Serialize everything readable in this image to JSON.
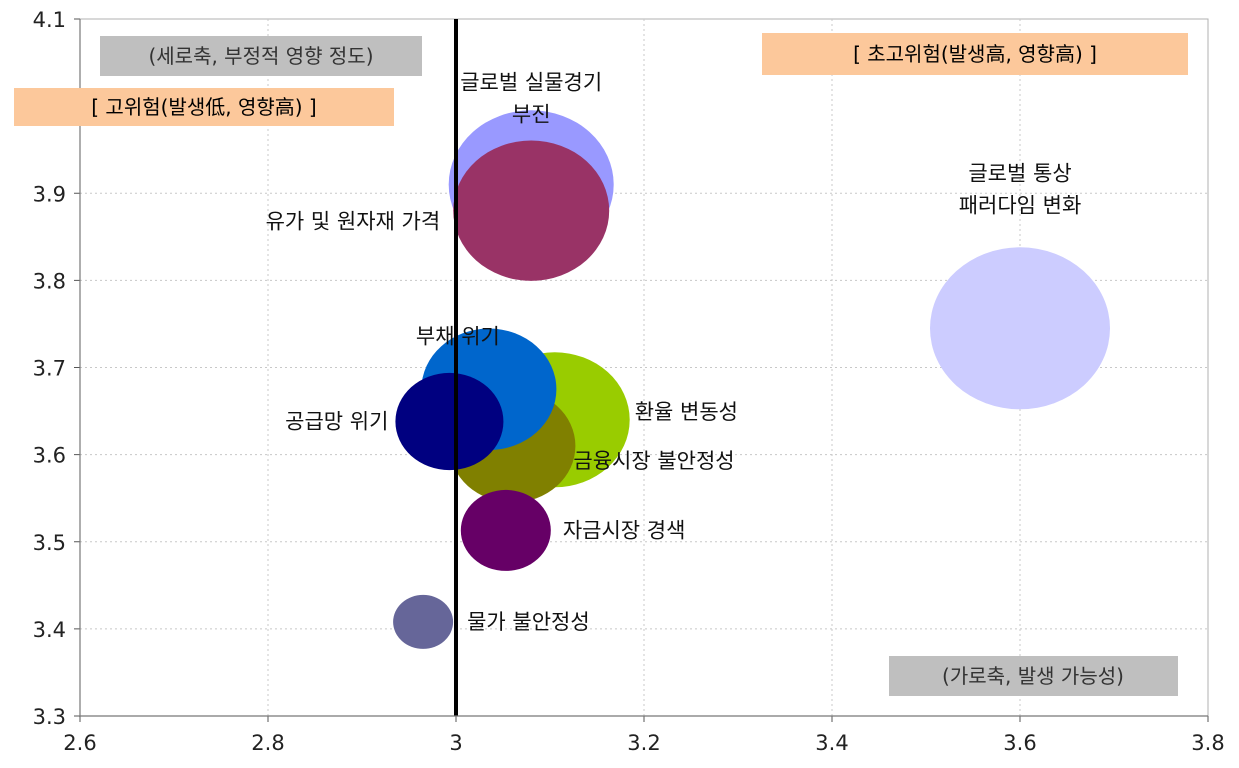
{
  "chart_data": {
    "type": "scatter",
    "xlim": [
      2.6,
      3.8
    ],
    "ylim": [
      3.3,
      4.1
    ],
    "x_ticks": [
      "2.6",
      "2.8",
      "3",
      "3.2",
      "3.4",
      "3.6",
      "3.8"
    ],
    "y_ticks": [
      "3.3",
      "3.4",
      "3.5",
      "3.6",
      "3.7",
      "3.8",
      "3.9",
      "4.1"
    ],
    "grid": true,
    "reference_line_x": 3.0,
    "annotations": {
      "y_axis_note": "(세로축, 부정적 영향 정도)",
      "x_axis_note": "(가로축, 발생 가능성)",
      "high_risk": "[ 고위험(발생低, 영향高) ]",
      "super_high_risk": "[ 초고위험(발생高, 영향高) ]"
    },
    "bubbles": [
      {
        "label": "글로벌 실물경기 부진",
        "label_lines": [
          "글로벌 실물경기",
          "부진"
        ],
        "x": 3.08,
        "y": 3.91,
        "size": 0.55,
        "color": "#9999ff"
      },
      {
        "label": "유가 및 원자재 가격",
        "label_lines": [
          "유가 및 원자재 가격"
        ],
        "x": 3.08,
        "y": 3.88,
        "size": 0.52,
        "color": "#993366"
      },
      {
        "label": "글로벌 통상 패러다임 변화",
        "label_lines": [
          "글로벌 통상",
          "패러다임 변화"
        ],
        "x": 3.6,
        "y": 3.745,
        "size": 0.6,
        "color": "#ccccff"
      },
      {
        "label": "환율 변동성",
        "label_lines": [
          "환율 변동성"
        ],
        "x": 3.105,
        "y": 3.64,
        "size": 0.5,
        "color": "#99cc00"
      },
      {
        "label": "금융시장 불안정성",
        "label_lines": [
          "금융시장 불안정성"
        ],
        "x": 3.06,
        "y": 3.61,
        "size": 0.42,
        "color": "#808000"
      },
      {
        "label": "부채 위기",
        "label_lines": [
          "부채 위기"
        ],
        "x": 3.035,
        "y": 3.675,
        "size": 0.45,
        "color": "#0066cc"
      },
      {
        "label": "공급망 위기",
        "label_lines": [
          "공급망 위기"
        ],
        "x": 2.993,
        "y": 3.638,
        "size": 0.36,
        "color": "#000080"
      },
      {
        "label": "자금시장 경색",
        "label_lines": [
          "자금시장 경색"
        ],
        "x": 3.053,
        "y": 3.513,
        "size": 0.3,
        "color": "#660066"
      },
      {
        "label": "물가 불안정성",
        "label_lines": [
          "물가 불안정성"
        ],
        "x": 2.965,
        "y": 3.408,
        "size": 0.2,
        "color": "#666699"
      }
    ]
  }
}
